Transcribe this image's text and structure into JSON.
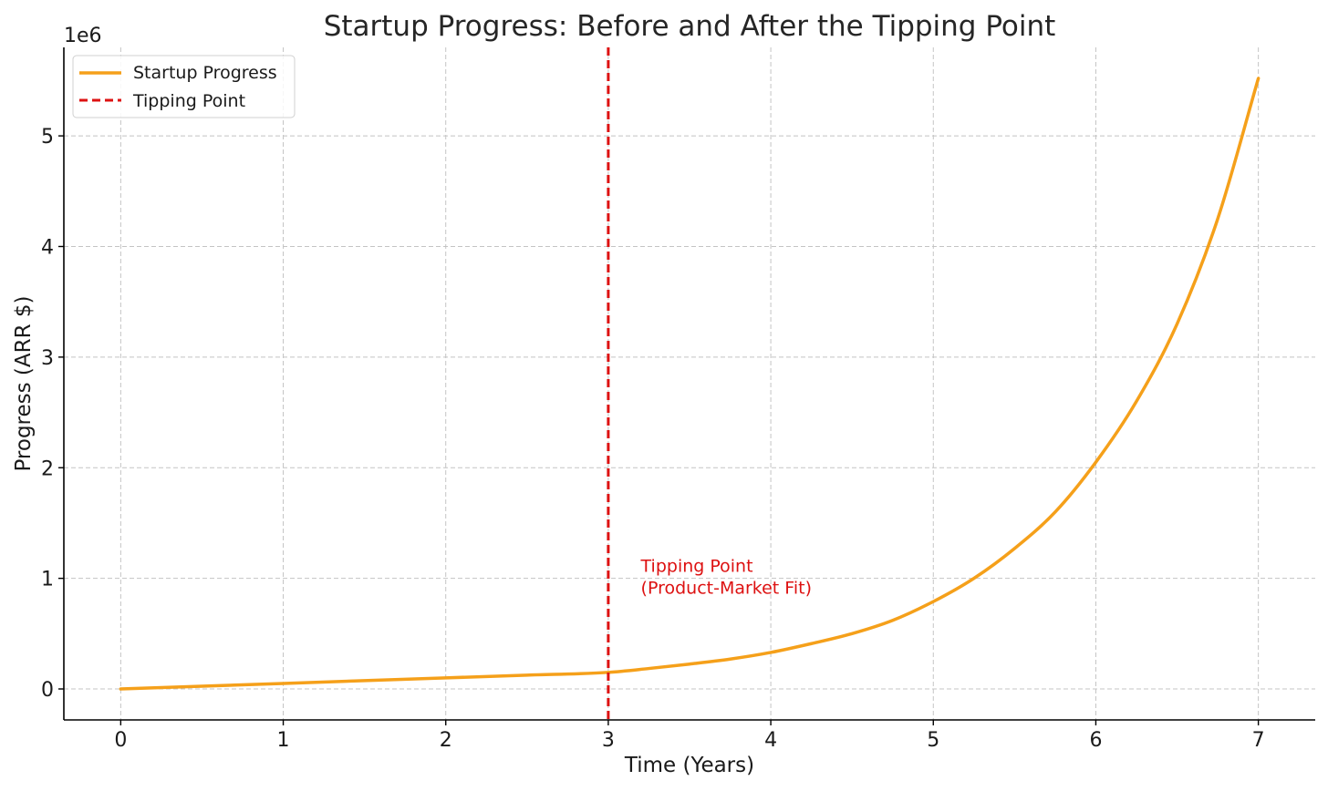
{
  "chart_data": {
    "type": "line",
    "title": "Startup Progress: Before and After the Tipping Point",
    "xlabel": "Time (Years)",
    "ylabel": "Progress (ARR $)",
    "y_offset_label": "1e6",
    "xlim": [
      -0.35,
      7.35
    ],
    "ylim": [
      -0.28,
      5.8
    ],
    "x_ticks": [
      0,
      1,
      2,
      3,
      4,
      5,
      6,
      7
    ],
    "y_ticks": [
      0,
      1,
      2,
      3,
      4,
      5
    ],
    "grid": true,
    "legend_position": "top-left",
    "series": [
      {
        "name": "Startup Progress",
        "color": "#F5A01A",
        "style": "solid",
        "x": [
          0,
          0.5,
          1,
          1.5,
          2,
          2.5,
          3,
          3.25,
          3.5,
          3.75,
          4,
          4.25,
          4.5,
          4.75,
          5,
          5.25,
          5.5,
          5.75,
          6,
          6.25,
          6.5,
          6.75,
          7
        ],
        "y": [
          0,
          0.025,
          0.05,
          0.075,
          0.1,
          0.125,
          0.15,
          0.185,
          0.225,
          0.27,
          0.33,
          0.41,
          0.5,
          0.62,
          0.79,
          1.0,
          1.27,
          1.6,
          2.05,
          2.6,
          3.3,
          4.25,
          5.52
        ]
      },
      {
        "name": "Tipping Point",
        "color": "#DD1111",
        "style": "dashed",
        "vline_x": 3
      }
    ],
    "annotations": [
      {
        "lines": [
          "Tipping Point",
          "(Product-Market Fit)"
        ],
        "x": 3.2,
        "y": 0.86,
        "color": "#DD1111"
      }
    ]
  }
}
